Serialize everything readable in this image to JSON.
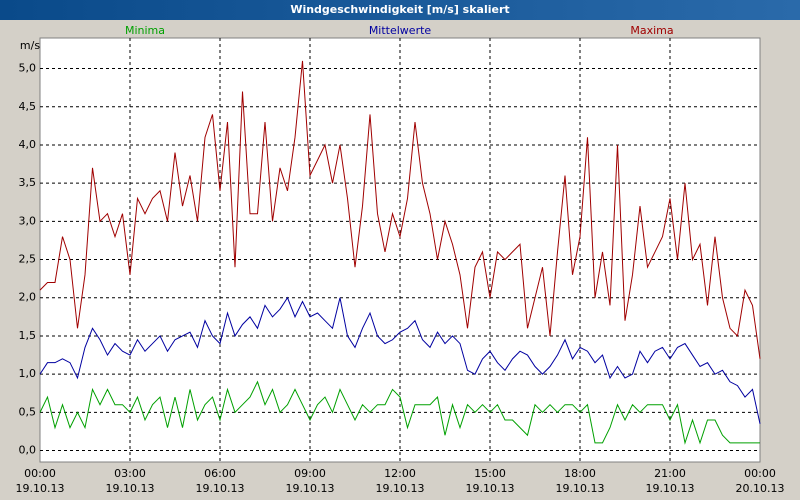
{
  "chart_data": {
    "type": "line",
    "title": "Windgeschwindigkeit [m/s] skaliert",
    "y_label": "m/s",
    "x": [
      0,
      0.25,
      0.5,
      0.75,
      1,
      1.25,
      1.5,
      1.75,
      2,
      2.25,
      2.5,
      2.75,
      3,
      3.25,
      3.5,
      3.75,
      4,
      4.25,
      4.5,
      4.75,
      5,
      5.25,
      5.5,
      5.75,
      6,
      6.25,
      6.5,
      6.75,
      7,
      7.25,
      7.5,
      7.75,
      8,
      8.25,
      8.5,
      8.75,
      9,
      9.25,
      9.5,
      9.75,
      10,
      10.25,
      10.5,
      10.75,
      11,
      11.25,
      11.5,
      11.75,
      12,
      12.25,
      12.5,
      12.75,
      13,
      13.25,
      13.5,
      13.75,
      14,
      14.25,
      14.5,
      14.75,
      15,
      15.25,
      15.5,
      15.75,
      16,
      16.25,
      16.5,
      16.75,
      17,
      17.25,
      17.5,
      17.75,
      18,
      18.25,
      18.5,
      18.75,
      19,
      19.25,
      19.5,
      19.75,
      20,
      20.25,
      20.5,
      20.75,
      21,
      21.25,
      21.5,
      21.75,
      22,
      22.25,
      22.5,
      22.75,
      23,
      23.25,
      23.5,
      23.75,
      24
    ],
    "series": [
      {
        "name": "Minima",
        "color": "#00a000",
        "values": [
          0.5,
          0.7,
          0.3,
          0.6,
          0.3,
          0.5,
          0.3,
          0.8,
          0.6,
          0.8,
          0.6,
          0.6,
          0.5,
          0.7,
          0.4,
          0.6,
          0.7,
          0.3,
          0.7,
          0.3,
          0.8,
          0.4,
          0.6,
          0.7,
          0.4,
          0.8,
          0.5,
          0.6,
          0.7,
          0.9,
          0.6,
          0.8,
          0.5,
          0.6,
          0.8,
          0.6,
          0.4,
          0.6,
          0.7,
          0.5,
          0.8,
          0.6,
          0.4,
          0.6,
          0.5,
          0.6,
          0.6,
          0.8,
          0.7,
          0.3,
          0.6,
          0.6,
          0.6,
          0.7,
          0.2,
          0.6,
          0.3,
          0.6,
          0.5,
          0.6,
          0.5,
          0.6,
          0.4,
          0.4,
          0.3,
          0.2,
          0.6,
          0.5,
          0.6,
          0.5,
          0.6,
          0.6,
          0.5,
          0.6,
          0.1,
          0.1,
          0.3,
          0.6,
          0.4,
          0.6,
          0.5,
          0.6,
          0.6,
          0.6,
          0.4,
          0.6,
          0.1,
          0.4,
          0.1,
          0.4,
          0.4,
          0.2,
          0.1,
          0.1,
          0.1,
          0.1,
          0.1
        ]
      },
      {
        "name": "Mittelwerte",
        "color": "#0000a0",
        "values": [
          1.0,
          1.15,
          1.15,
          1.2,
          1.15,
          0.95,
          1.35,
          1.6,
          1.45,
          1.25,
          1.4,
          1.3,
          1.25,
          1.45,
          1.3,
          1.4,
          1.5,
          1.3,
          1.45,
          1.5,
          1.55,
          1.35,
          1.7,
          1.5,
          1.4,
          1.8,
          1.5,
          1.65,
          1.75,
          1.6,
          1.9,
          1.75,
          1.85,
          2.0,
          1.75,
          1.95,
          1.75,
          1.8,
          1.7,
          1.6,
          2.0,
          1.5,
          1.35,
          1.6,
          1.8,
          1.5,
          1.4,
          1.45,
          1.55,
          1.6,
          1.7,
          1.45,
          1.35,
          1.55,
          1.4,
          1.5,
          1.4,
          1.05,
          1.0,
          1.2,
          1.3,
          1.15,
          1.05,
          1.2,
          1.3,
          1.25,
          1.1,
          1.0,
          1.1,
          1.25,
          1.45,
          1.2,
          1.35,
          1.3,
          1.15,
          1.25,
          0.95,
          1.1,
          0.95,
          1.0,
          1.3,
          1.15,
          1.3,
          1.35,
          1.2,
          1.35,
          1.4,
          1.25,
          1.1,
          1.15,
          1.0,
          1.05,
          0.9,
          0.85,
          0.7,
          0.8,
          0.35
        ]
      },
      {
        "name": "Maxima",
        "color": "#a00000",
        "values": [
          2.1,
          2.2,
          2.2,
          2.8,
          2.5,
          1.6,
          2.3,
          3.7,
          3.0,
          3.1,
          2.8,
          3.1,
          2.3,
          3.3,
          3.1,
          3.3,
          3.4,
          3.0,
          3.9,
          3.2,
          3.6,
          3.0,
          4.1,
          4.4,
          3.4,
          4.3,
          2.4,
          4.7,
          3.1,
          3.1,
          4.3,
          3.0,
          3.7,
          3.4,
          4.1,
          5.1,
          3.6,
          3.8,
          4.0,
          3.5,
          4.0,
          3.3,
          2.4,
          3.2,
          4.4,
          3.1,
          2.6,
          3.1,
          2.8,
          3.3,
          4.3,
          3.5,
          3.1,
          2.5,
          3.0,
          2.7,
          2.3,
          1.6,
          2.4,
          2.6,
          2.0,
          2.6,
          2.5,
          2.6,
          2.7,
          1.6,
          2.0,
          2.4,
          1.5,
          2.6,
          3.6,
          2.3,
          2.8,
          4.1,
          2.0,
          2.6,
          1.9,
          4.0,
          1.7,
          2.3,
          3.2,
          2.4,
          2.6,
          2.8,
          3.3,
          2.5,
          3.5,
          2.5,
          2.7,
          1.9,
          2.8,
          2.0,
          1.6,
          1.5,
          2.1,
          1.9,
          1.2
        ]
      }
    ],
    "xlim": [
      0,
      24
    ],
    "ylim": [
      -0.15,
      5.4
    ],
    "xticks": [
      {
        "value": 0,
        "label": "00:00"
      },
      {
        "value": 3,
        "label": "03:00"
      },
      {
        "value": 6,
        "label": "06:00"
      },
      {
        "value": 9,
        "label": "09:00"
      },
      {
        "value": 12,
        "label": "12:00"
      },
      {
        "value": 15,
        "label": "15:00"
      },
      {
        "value": 18,
        "label": "18:00"
      },
      {
        "value": 21,
        "label": "21:00"
      },
      {
        "value": 24,
        "label": "00:00"
      }
    ],
    "xtick_dates": [
      "19.10.13",
      "19.10.13",
      "19.10.13",
      "19.10.13",
      "19.10.13",
      "19.10.13",
      "19.10.13",
      "19.10.13",
      "20.10.13"
    ],
    "yticks": [
      {
        "value": 0,
        "label": "0,0"
      },
      {
        "value": 0.5,
        "label": "0,5"
      },
      {
        "value": 1,
        "label": "1,0"
      },
      {
        "value": 1.5,
        "label": "1,5"
      },
      {
        "value": 2,
        "label": "2,0"
      },
      {
        "value": 2.5,
        "label": "2,5"
      },
      {
        "value": 3,
        "label": "3,0"
      },
      {
        "value": 3.5,
        "label": "3,5"
      },
      {
        "value": 4,
        "label": "4,0"
      },
      {
        "value": 4.5,
        "label": "4,5"
      },
      {
        "value": 5,
        "label": "5,0"
      }
    ],
    "grid": true
  }
}
